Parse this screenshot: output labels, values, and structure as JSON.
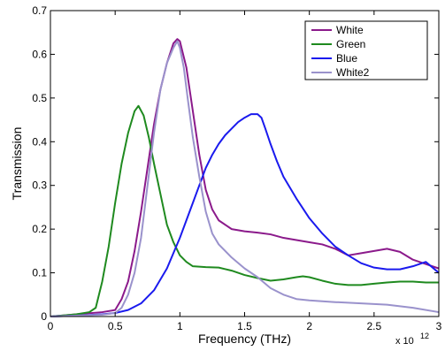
{
  "chart_data": {
    "type": "line",
    "xlabel": "Frequency (THz)",
    "ylabel": "Transmission",
    "x_exponent_label": "x 10",
    "x_exponent_power": "12",
    "xlim": [
      0,
      3
    ],
    "ylim": [
      0,
      0.7
    ],
    "x_ticks": [
      0,
      0.5,
      1,
      1.5,
      2,
      2.5,
      3
    ],
    "x_tick_labels": [
      "0",
      "0.5",
      "1",
      "1.5",
      "2",
      "2.5",
      "3"
    ],
    "y_ticks": [
      0,
      0.1,
      0.2,
      0.3,
      0.4,
      0.5,
      0.6,
      0.7
    ],
    "y_tick_labels": [
      "0",
      "0.1",
      "0.2",
      "0.3",
      "0.4",
      "0.5",
      "0.6",
      "0.7"
    ],
    "grid": false,
    "legend_position": "top-right",
    "series": [
      {
        "name": "White",
        "color": "#8b1a8b",
        "x": [
          0,
          0.2,
          0.4,
          0.5,
          0.55,
          0.6,
          0.65,
          0.7,
          0.75,
          0.8,
          0.85,
          0.9,
          0.95,
          0.98,
          1.0,
          1.05,
          1.1,
          1.15,
          1.2,
          1.25,
          1.3,
          1.4,
          1.5,
          1.6,
          1.7,
          1.8,
          1.9,
          2.0,
          2.1,
          2.2,
          2.3,
          2.4,
          2.5,
          2.6,
          2.7,
          2.8,
          2.9,
          3.0
        ],
        "y": [
          0,
          0.005,
          0.01,
          0.015,
          0.04,
          0.08,
          0.15,
          0.24,
          0.34,
          0.44,
          0.52,
          0.58,
          0.625,
          0.635,
          0.63,
          0.57,
          0.47,
          0.37,
          0.29,
          0.245,
          0.22,
          0.2,
          0.195,
          0.192,
          0.188,
          0.18,
          0.175,
          0.17,
          0.165,
          0.155,
          0.14,
          0.145,
          0.15,
          0.155,
          0.148,
          0.13,
          0.12,
          0.11
        ]
      },
      {
        "name": "Green",
        "color": "#1f8a1f",
        "x": [
          0,
          0.2,
          0.3,
          0.35,
          0.4,
          0.45,
          0.5,
          0.55,
          0.6,
          0.65,
          0.68,
          0.72,
          0.76,
          0.8,
          0.85,
          0.9,
          0.95,
          1.0,
          1.05,
          1.1,
          1.2,
          1.3,
          1.4,
          1.5,
          1.6,
          1.7,
          1.8,
          1.9,
          1.95,
          2.0,
          2.1,
          2.2,
          2.3,
          2.4,
          2.5,
          2.6,
          2.7,
          2.8,
          2.9,
          3.0
        ],
        "y": [
          0,
          0.005,
          0.01,
          0.02,
          0.08,
          0.16,
          0.26,
          0.35,
          0.42,
          0.47,
          0.482,
          0.46,
          0.41,
          0.35,
          0.28,
          0.21,
          0.17,
          0.14,
          0.125,
          0.115,
          0.113,
          0.112,
          0.105,
          0.095,
          0.088,
          0.082,
          0.085,
          0.09,
          0.092,
          0.09,
          0.082,
          0.075,
          0.072,
          0.072,
          0.075,
          0.078,
          0.08,
          0.08,
          0.078,
          0.078
        ]
      },
      {
        "name": "Blue",
        "color": "#1a1aee",
        "x": [
          0,
          0.2,
          0.4,
          0.5,
          0.6,
          0.7,
          0.8,
          0.9,
          1.0,
          1.05,
          1.1,
          1.15,
          1.2,
          1.25,
          1.3,
          1.35,
          1.4,
          1.45,
          1.5,
          1.55,
          1.6,
          1.63,
          1.66,
          1.7,
          1.75,
          1.8,
          1.9,
          2.0,
          2.1,
          2.2,
          2.3,
          2.4,
          2.5,
          2.6,
          2.7,
          2.8,
          2.9,
          3.0
        ],
        "y": [
          0,
          0.002,
          0.005,
          0.008,
          0.015,
          0.03,
          0.06,
          0.11,
          0.18,
          0.22,
          0.26,
          0.3,
          0.34,
          0.37,
          0.395,
          0.415,
          0.43,
          0.445,
          0.455,
          0.463,
          0.463,
          0.455,
          0.43,
          0.395,
          0.355,
          0.32,
          0.27,
          0.225,
          0.19,
          0.16,
          0.14,
          0.122,
          0.112,
          0.108,
          0.108,
          0.115,
          0.125,
          0.1
        ]
      },
      {
        "name": "White2",
        "color": "#9a92cc",
        "x": [
          0,
          0.2,
          0.4,
          0.5,
          0.55,
          0.6,
          0.65,
          0.7,
          0.75,
          0.8,
          0.85,
          0.9,
          0.95,
          0.98,
          1.0,
          1.03,
          1.06,
          1.1,
          1.15,
          1.2,
          1.25,
          1.3,
          1.4,
          1.5,
          1.6,
          1.7,
          1.8,
          1.9,
          2.0,
          2.2,
          2.4,
          2.6,
          2.8,
          3.0
        ],
        "y": [
          0,
          0.002,
          0.004,
          0.008,
          0.02,
          0.05,
          0.1,
          0.18,
          0.3,
          0.42,
          0.52,
          0.58,
          0.615,
          0.63,
          0.615,
          0.57,
          0.5,
          0.41,
          0.32,
          0.24,
          0.19,
          0.165,
          0.135,
          0.11,
          0.09,
          0.065,
          0.05,
          0.04,
          0.037,
          0.033,
          0.03,
          0.027,
          0.02,
          0.01
        ]
      }
    ]
  }
}
